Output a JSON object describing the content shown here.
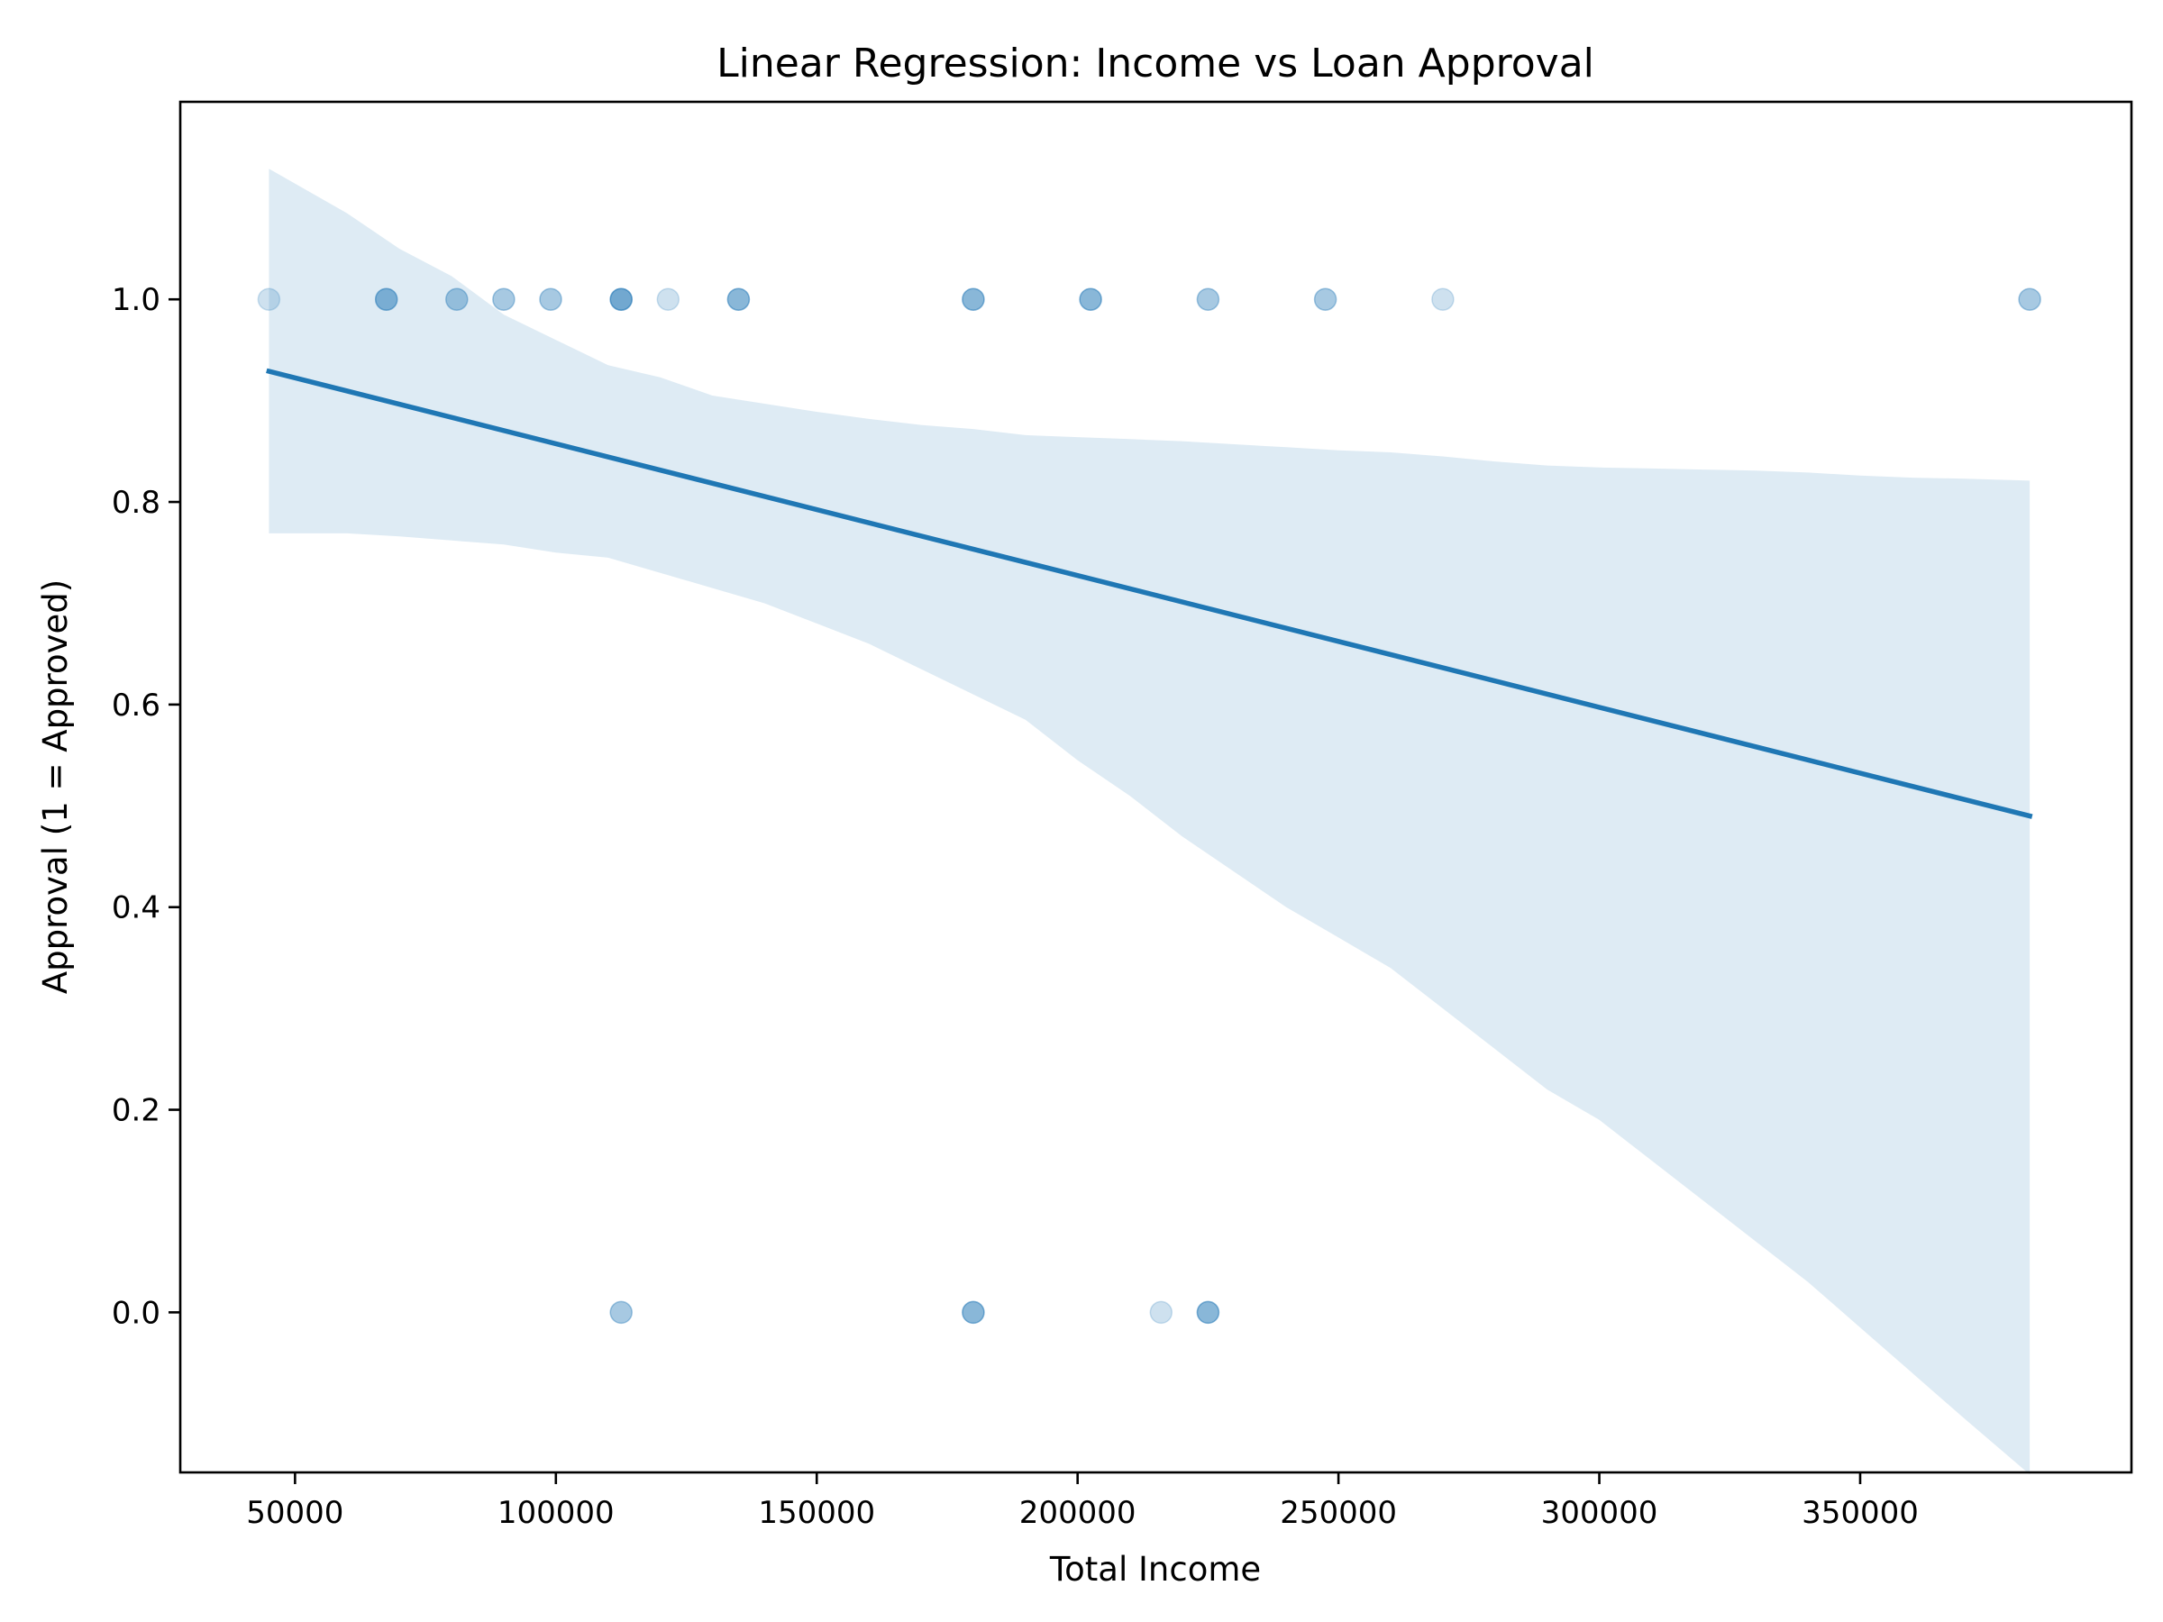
{
  "chart_data": {
    "type": "scatter",
    "title": "Linear Regression: Income vs Loan Approval",
    "xlabel": "Total Income",
    "ylabel": "Approval (1 = Approved)",
    "xlim": [
      28000,
      402000
    ],
    "ylim": [
      -0.158,
      1.195
    ],
    "xticks": [
      50000,
      100000,
      150000,
      200000,
      250000,
      300000,
      350000
    ],
    "xtick_labels": [
      "50000",
      "100000",
      "150000",
      "200000",
      "250000",
      "300000",
      "350000"
    ],
    "yticks": [
      0.0,
      0.2,
      0.4,
      0.6,
      0.8,
      1.0
    ],
    "ytick_labels": [
      "0.0",
      "0.2",
      "0.4",
      "0.6",
      "0.8",
      "1.0"
    ],
    "grid": false,
    "colors": {
      "points": "#1f77b4",
      "line": "#1f77b4",
      "band": "#1f77b4"
    },
    "points": [
      {
        "x": 45000,
        "y": 1,
        "n": 1
      },
      {
        "x": 67500,
        "y": 1,
        "n": 3
      },
      {
        "x": 81000,
        "y": 1,
        "n": 2
      },
      {
        "x": 90000,
        "y": 1,
        "n": 2
      },
      {
        "x": 99000,
        "y": 1,
        "n": 2
      },
      {
        "x": 112500,
        "y": 1,
        "n": 4
      },
      {
        "x": 121500,
        "y": 1,
        "n": 1
      },
      {
        "x": 135000,
        "y": 1,
        "n": 3
      },
      {
        "x": 180000,
        "y": 1,
        "n": 3
      },
      {
        "x": 202500,
        "y": 1,
        "n": 3
      },
      {
        "x": 225000,
        "y": 1,
        "n": 2
      },
      {
        "x": 247500,
        "y": 1,
        "n": 2
      },
      {
        "x": 270000,
        "y": 1,
        "n": 1
      },
      {
        "x": 382500,
        "y": 1,
        "n": 2
      },
      {
        "x": 112500,
        "y": 0,
        "n": 2
      },
      {
        "x": 180000,
        "y": 0,
        "n": 3
      },
      {
        "x": 216000,
        "y": 0,
        "n": 1
      },
      {
        "x": 225000,
        "y": 0,
        "n": 3
      }
    ],
    "regression_line": {
      "x": [
        45000,
        382500
      ],
      "y": [
        0.929,
        0.49
      ]
    },
    "confidence_band": {
      "x": [
        45000,
        60000,
        70000,
        80000,
        90000,
        100000,
        110000,
        120000,
        130000,
        140000,
        150000,
        160000,
        170000,
        180000,
        190000,
        200000,
        210000,
        220000,
        230000,
        240000,
        250000,
        260000,
        270000,
        280000,
        290000,
        300000,
        310000,
        320000,
        330000,
        340000,
        350000,
        360000,
        370000,
        382500
      ],
      "upper": [
        1.129,
        1.085,
        1.05,
        1.023,
        0.985,
        0.96,
        0.935,
        0.923,
        0.905,
        0.897,
        0.889,
        0.882,
        0.876,
        0.872,
        0.866,
        0.864,
        0.862,
        0.86,
        0.857,
        0.854,
        0.851,
        0.849,
        0.845,
        0.84,
        0.836,
        0.834,
        0.833,
        0.832,
        0.831,
        0.829,
        0.826,
        0.824,
        0.823,
        0.821
      ],
      "lower": [
        0.769,
        0.769,
        0.766,
        0.762,
        0.758,
        0.75,
        0.745,
        0.73,
        0.715,
        0.7,
        0.68,
        0.66,
        0.635,
        0.61,
        0.585,
        0.545,
        0.51,
        0.47,
        0.435,
        0.4,
        0.37,
        0.34,
        0.3,
        0.26,
        0.22,
        0.19,
        0.15,
        0.11,
        0.07,
        0.03,
        -0.015,
        -0.06,
        -0.105,
        -0.16
      ]
    }
  }
}
